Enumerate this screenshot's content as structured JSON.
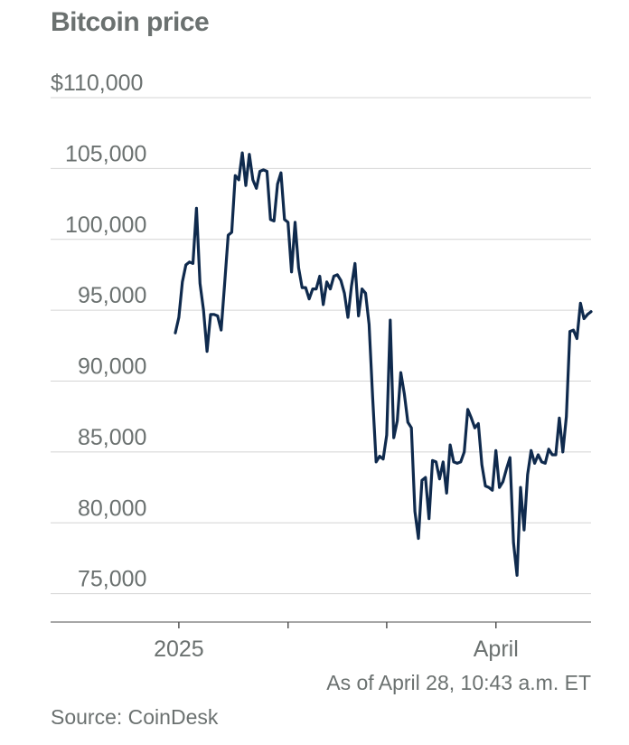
{
  "title": "Bitcoin price",
  "note": "As of April 28, 10:43 a.m. ET",
  "source": "Source: CoinDesk",
  "chart_data": {
    "type": "line",
    "title": "Bitcoin price",
    "xlabel": "",
    "ylabel": "",
    "ylim": [
      73000,
      110000
    ],
    "yticks": [
      75000,
      80000,
      85000,
      90000,
      95000,
      100000,
      105000,
      110000
    ],
    "ytick_labels": [
      "75,000",
      "80,000",
      "85,000",
      "90,000",
      "95,000",
      "100,000",
      "105,000",
      "$110,000"
    ],
    "x_labels": [
      {
        "date": "2025-01-01",
        "label": "2025"
      },
      {
        "date": "2025-04-01",
        "label": "April"
      }
    ],
    "x_minor_ticks": [
      "2025-02-01",
      "2025-03-01"
    ],
    "xlim": [
      "2024-12-31",
      "2025-04-28"
    ],
    "grid": true,
    "line_color": "#0f2a4d",
    "series": [
      {
        "x": [
          "2024-12-31",
          "2025-01-01",
          "2025-01-02",
          "2025-01-03",
          "2025-01-04",
          "2025-01-05",
          "2025-01-06",
          "2025-01-07",
          "2025-01-08",
          "2025-01-09",
          "2025-01-10",
          "2025-01-11",
          "2025-01-12",
          "2025-01-13",
          "2025-01-14",
          "2025-01-15",
          "2025-01-16",
          "2025-01-17",
          "2025-01-18",
          "2025-01-19",
          "2025-01-20",
          "2025-01-21",
          "2025-01-22",
          "2025-01-23",
          "2025-01-24",
          "2025-01-25",
          "2025-01-26",
          "2025-01-27",
          "2025-01-28",
          "2025-01-29",
          "2025-01-30",
          "2025-01-31",
          "2025-02-01",
          "2025-02-02",
          "2025-02-03",
          "2025-02-04",
          "2025-02-05",
          "2025-02-06",
          "2025-02-07",
          "2025-02-08",
          "2025-02-09",
          "2025-02-10",
          "2025-02-11",
          "2025-02-12",
          "2025-02-13",
          "2025-02-14",
          "2025-02-15",
          "2025-02-16",
          "2025-02-17",
          "2025-02-18",
          "2025-02-19",
          "2025-02-20",
          "2025-02-21",
          "2025-02-22",
          "2025-02-23",
          "2025-02-24",
          "2025-02-25",
          "2025-02-26",
          "2025-02-27",
          "2025-02-28",
          "2025-03-01",
          "2025-03-02",
          "2025-03-03",
          "2025-03-04",
          "2025-03-05",
          "2025-03-06",
          "2025-03-07",
          "2025-03-08",
          "2025-03-09",
          "2025-03-10",
          "2025-03-11",
          "2025-03-12",
          "2025-03-13",
          "2025-03-14",
          "2025-03-15",
          "2025-03-16",
          "2025-03-17",
          "2025-03-18",
          "2025-03-19",
          "2025-03-20",
          "2025-03-21",
          "2025-03-22",
          "2025-03-23",
          "2025-03-24",
          "2025-03-25",
          "2025-03-26",
          "2025-03-27",
          "2025-03-28",
          "2025-03-29",
          "2025-03-30",
          "2025-03-31",
          "2025-04-01",
          "2025-04-02",
          "2025-04-03",
          "2025-04-04",
          "2025-04-05",
          "2025-04-06",
          "2025-04-07",
          "2025-04-08",
          "2025-04-09",
          "2025-04-10",
          "2025-04-11",
          "2025-04-12",
          "2025-04-13",
          "2025-04-14",
          "2025-04-15",
          "2025-04-16",
          "2025-04-17",
          "2025-04-18",
          "2025-04-19",
          "2025-04-20",
          "2025-04-21",
          "2025-04-22",
          "2025-04-23",
          "2025-04-24",
          "2025-04-25",
          "2025-04-26",
          "2025-04-27",
          "2025-04-28"
        ],
        "y": [
          93400,
          94500,
          97000,
          98200,
          98400,
          98300,
          102200,
          96900,
          95000,
          92100,
          94700,
          94700,
          94600,
          93600,
          96900,
          100300,
          100500,
          104500,
          104200,
          106100,
          103800,
          106000,
          104200,
          103600,
          104800,
          104900,
          104800,
          101400,
          101300,
          103900,
          104700,
          101400,
          101200,
          97700,
          101200,
          98000,
          96600,
          96600,
          95800,
          96500,
          96500,
          97400,
          95400,
          97000,
          96500,
          97400,
          97500,
          97100,
          96200,
          94500,
          96700,
          98300,
          94600,
          96500,
          96200,
          94000,
          88900,
          84300,
          84700,
          84500,
          86200,
          94300,
          86000,
          87200,
          90600,
          89100,
          87100,
          86700,
          80800,
          78900,
          83000,
          83200,
          80300,
          84400,
          84300,
          83100,
          84300,
          82100,
          85500,
          84300,
          84200,
          84300,
          85000,
          88000,
          87400,
          86700,
          87000,
          84100,
          82600,
          82500,
          82300,
          85100,
          82500,
          82900,
          83800,
          84600,
          78600,
          76300,
          82500,
          79500,
          83400,
          85100,
          84200,
          84800,
          84300,
          84200,
          85200,
          84800,
          84800,
          87400,
          85000,
          87500,
          93500,
          93600,
          93000,
          95500,
          94400,
          94700,
          94900
        ]
      }
    ]
  }
}
